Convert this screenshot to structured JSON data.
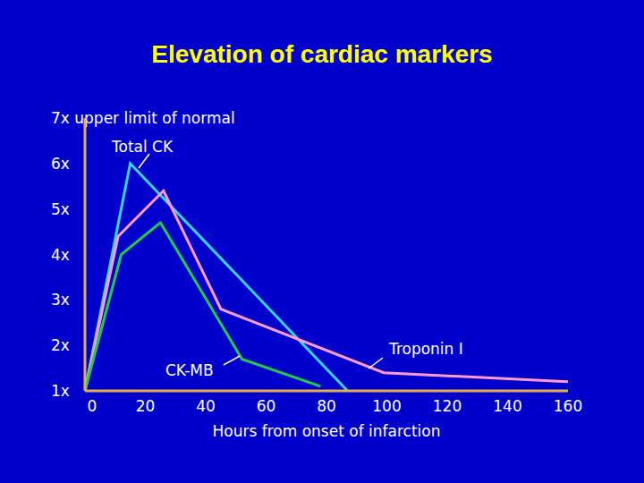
{
  "chart_data": {
    "type": "line",
    "title": "Elevation of cardiac markers",
    "x_label": "Hours from onset of infarction",
    "xlim": [
      0,
      160
    ],
    "xticks": [
      0,
      20,
      40,
      60,
      80,
      100,
      120,
      140,
      160
    ],
    "ylim": [
      1,
      7
    ],
    "yticks": [
      {
        "value": 1,
        "label": "1x"
      },
      {
        "value": 2,
        "label": "2x"
      },
      {
        "value": 3,
        "label": "3x"
      },
      {
        "value": 4,
        "label": "4x"
      },
      {
        "value": 5,
        "label": "5x"
      },
      {
        "value": 6,
        "label": "6x"
      },
      {
        "value": 7,
        "label": "7x upper limit of normal"
      }
    ],
    "grid": false,
    "series": [
      {
        "name": "Total CK",
        "color": "#33d6f0",
        "x": [
          0,
          15,
          87
        ],
        "values": [
          1,
          6,
          1
        ]
      },
      {
        "name": "Troponin I",
        "color": "#ff99cc",
        "x": [
          0,
          11,
          26,
          45,
          99,
          160
        ],
        "values": [
          1,
          4.4,
          5.4,
          2.8,
          1.4,
          1.2
        ]
      },
      {
        "name": "CK-MB",
        "color": "#22cc44",
        "x": [
          0,
          12,
          25,
          52,
          78
        ],
        "values": [
          1,
          4,
          4.7,
          1.7,
          1.1
        ]
      }
    ]
  }
}
